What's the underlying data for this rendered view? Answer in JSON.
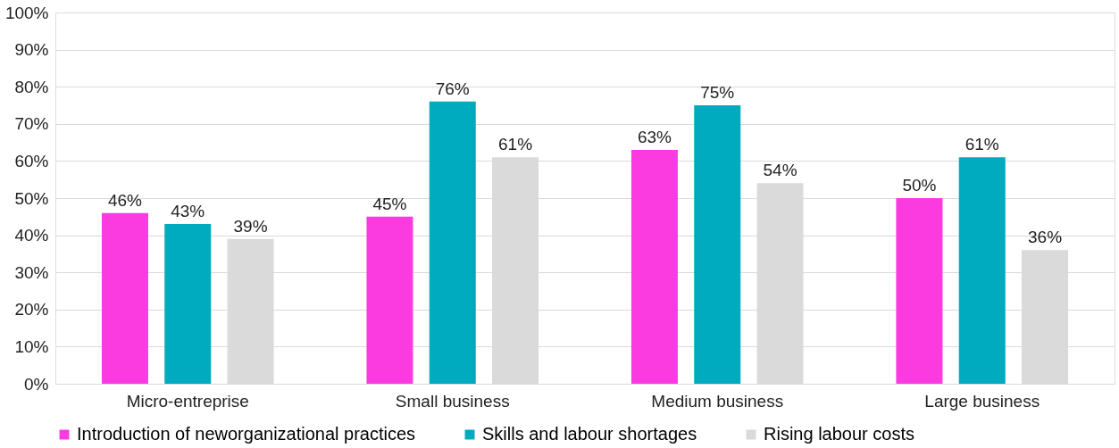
{
  "chart_data": {
    "type": "bar",
    "categories": [
      "Micro-entreprise",
      "Small business",
      "Medium business",
      "Large business"
    ],
    "series": [
      {
        "name": "Introduction of neworganizational practices",
        "color": "#fb3be0",
        "values": [
          46,
          45,
          63,
          50
        ],
        "value_labels": [
          "46%",
          "45%",
          "63%",
          "50%"
        ]
      },
      {
        "name": "Skills and labour shortages",
        "color": "#00aabf",
        "values": [
          43,
          76,
          75,
          61
        ],
        "value_labels": [
          "43%",
          "76%",
          "75%",
          "61%"
        ]
      },
      {
        "name": "Rising labour costs",
        "color": "#dadada",
        "values": [
          39,
          61,
          54,
          36
        ],
        "value_labels": [
          "39%",
          "61%",
          "54%",
          "36%"
        ]
      }
    ],
    "ylim": [
      0,
      100
    ],
    "yticks": [
      {
        "value": 0,
        "label": "0%"
      },
      {
        "value": 10,
        "label": "10%"
      },
      {
        "value": 20,
        "label": "20%"
      },
      {
        "value": 30,
        "label": "30%"
      },
      {
        "value": 40,
        "label": "40%"
      },
      {
        "value": 50,
        "label": "50%"
      },
      {
        "value": 60,
        "label": "60%"
      },
      {
        "value": 70,
        "label": "70%"
      },
      {
        "value": 80,
        "label": "80%"
      },
      {
        "value": 90,
        "label": "90%"
      },
      {
        "value": 100,
        "label": "100%"
      }
    ],
    "grid": "y",
    "legend": "bottom"
  }
}
